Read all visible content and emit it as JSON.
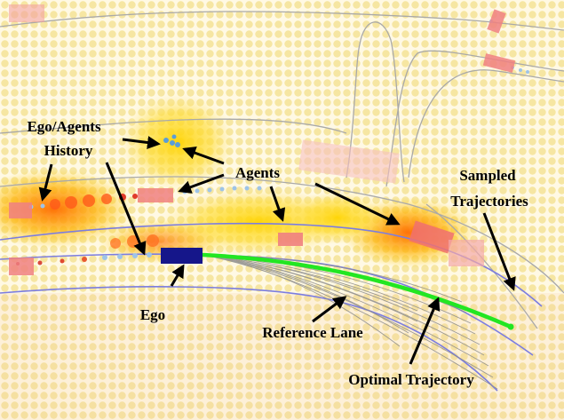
{
  "labels": {
    "ego_agents_history": [
      "Ego/Agents",
      "History"
    ],
    "agents": "Agents",
    "sampled_trajectories": [
      "Sampled",
      "Trajectories"
    ],
    "ego": "Ego",
    "reference_lane": "Reference Lane",
    "optimal_trajectory": "Optimal Trajectory"
  },
  "colors": {
    "background": "#fff9e0",
    "dot_grid": "#f4e8a0",
    "cost_heat": "#ffd200",
    "cost_heat_hot": "#ff5a00",
    "map_line": "#a8a8a8",
    "lane_line": "#7b7de0",
    "agent_box": "#f08c8c",
    "ego_box": "#15168a",
    "optimal_trajectory": "#22e622",
    "sampled_trajectory": "#8a8a8a",
    "history_dot": "#9ec4e8"
  }
}
